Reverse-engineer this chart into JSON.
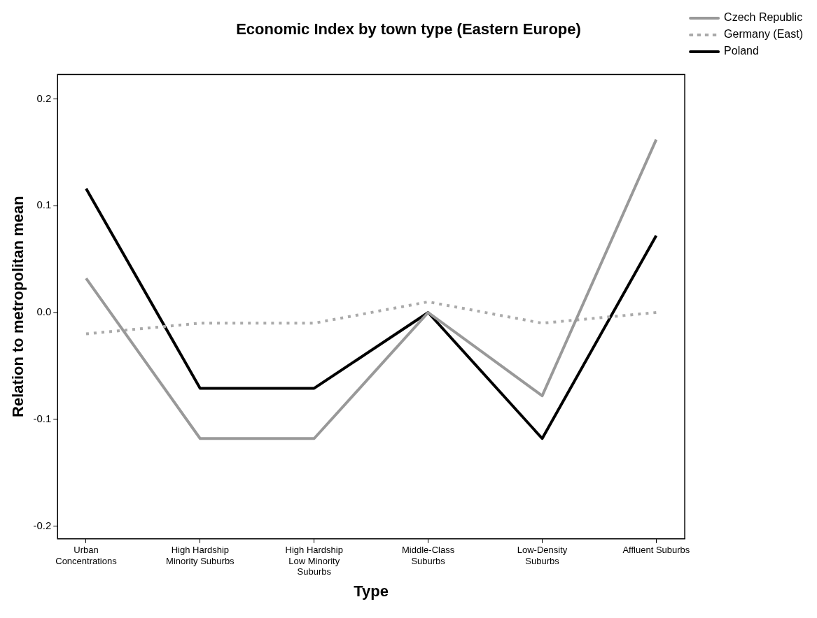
{
  "chart_data": {
    "type": "line",
    "title": "Economic Index by town type (Eastern Europe)",
    "xlabel": "Type",
    "ylabel": "Relation to metropolitan mean",
    "categories": [
      "Urban Concentrations",
      "High Hardship Minority Suburbs",
      "High Hardship Low Minority Suburbs",
      "Middle-Class Suburbs",
      "Low-Density Suburbs",
      "Affluent Suburbs"
    ],
    "series": [
      {
        "name": "Czech Republic",
        "color": "#999999",
        "line_style": "solid",
        "values": [
          0.032,
          -0.118,
          -0.118,
          0.0,
          -0.078,
          0.162
        ]
      },
      {
        "name": "Germany (East)",
        "color": "#aaaaaa",
        "line_style": "dotted",
        "values": [
          -0.02,
          -0.01,
          -0.01,
          0.01,
          -0.01,
          0.0
        ]
      },
      {
        "name": "Poland",
        "color": "#000000",
        "line_style": "solid",
        "values": [
          0.116,
          -0.071,
          -0.071,
          0.0,
          -0.118,
          0.072
        ]
      }
    ],
    "ylim": [
      -0.212,
      0.223
    ],
    "yticks": [
      {
        "value": -0.2,
        "label": "-0.2"
      },
      {
        "value": -0.1,
        "label": "-0.1"
      },
      {
        "value": 0,
        "label": "0.0"
      },
      {
        "value": 0.1,
        "label": "0.1"
      },
      {
        "value": 0.2,
        "label": "0.2"
      }
    ],
    "grid": false,
    "legend": "top right",
    "marker": "none"
  }
}
